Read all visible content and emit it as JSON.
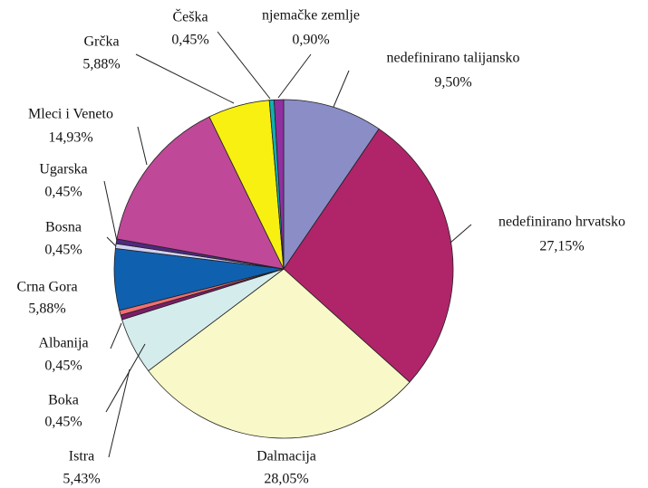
{
  "chart_data": {
    "type": "pie",
    "categories": [
      "nedefinirano talijansko",
      "nedefinirano hrvatsko",
      "Dalmacija",
      "Istra",
      "Boka",
      "Albanija",
      "Crna Gora",
      "Bosna",
      "Ugarska",
      "Mleci i Veneto",
      "Grčka",
      "Češka",
      "njemačke zemlje"
    ],
    "values": [
      9.5,
      27.15,
      28.05,
      5.43,
      0.45,
      0.45,
      5.88,
      0.45,
      0.45,
      14.93,
      5.88,
      0.45,
      0.9
    ],
    "value_labels": [
      "9,50%",
      "27,15%",
      "28,05%",
      "5,43%",
      "0,45%",
      "0,45%",
      "5,88%",
      "0,45%",
      "0,45%",
      "14,93%",
      "5,88%",
      "0,45%",
      "0,90%"
    ],
    "colors": [
      "#8b8dc7",
      "#b0246a",
      "#f8f8c8",
      "#d4ecec",
      "#7b1c6a",
      "#f07070",
      "#1060b0",
      "#d0d0f0",
      "#502880",
      "#c04898",
      "#f8f010",
      "#10b0b0",
      "#9030a0"
    ]
  }
}
